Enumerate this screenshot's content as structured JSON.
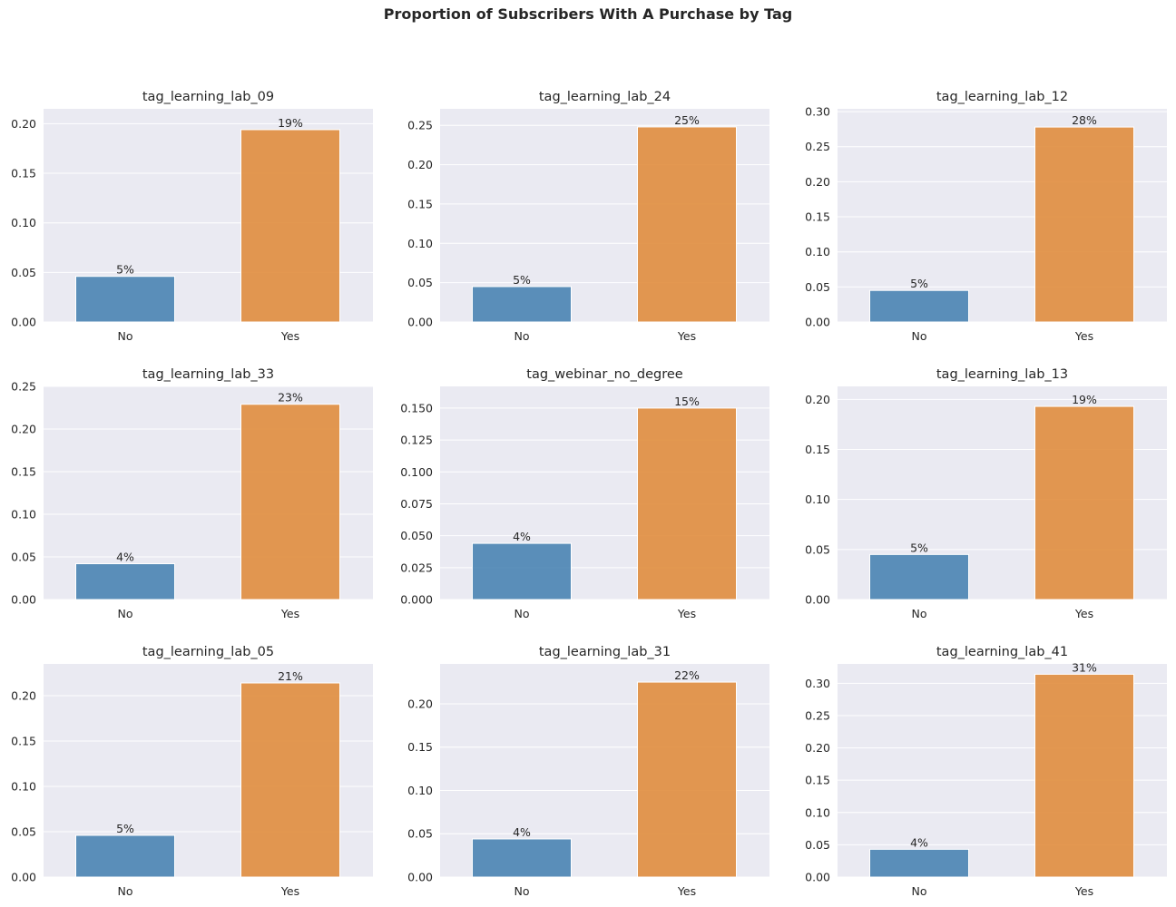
{
  "figure": {
    "suptitle": "Proportion of Subscribers With A Purchase by Tag"
  },
  "colors": {
    "no": "#4a84b2",
    "yes": "#e08d3e",
    "panel_bg": "#eaeaf2",
    "grid": "#ffffff"
  },
  "chart_data": [
    {
      "type": "bar",
      "title": "tag_learning_lab_09",
      "categories": [
        "No",
        "Yes"
      ],
      "values": [
        0.046,
        0.194
      ],
      "labels": [
        "5%",
        "19%"
      ],
      "ylim": [
        0,
        0.215
      ],
      "yticks": [
        "0.00",
        "0.05",
        "0.10",
        "0.15",
        "0.20"
      ],
      "ytick_values": [
        0,
        0.05,
        0.1,
        0.15,
        0.2
      ],
      "grid": true
    },
    {
      "type": "bar",
      "title": "tag_learning_lab_24",
      "categories": [
        "No",
        "Yes"
      ],
      "values": [
        0.045,
        0.248
      ],
      "labels": [
        "5%",
        "25%"
      ],
      "ylim": [
        0,
        0.271
      ],
      "yticks": [
        "0.00",
        "0.05",
        "0.10",
        "0.15",
        "0.20",
        "0.25"
      ],
      "ytick_values": [
        0,
        0.05,
        0.1,
        0.15,
        0.2,
        0.25
      ],
      "grid": true
    },
    {
      "type": "bar",
      "title": "tag_learning_lab_12",
      "categories": [
        "No",
        "Yes"
      ],
      "values": [
        0.045,
        0.278
      ],
      "labels": [
        "5%",
        "28%"
      ],
      "ylim": [
        0,
        0.304
      ],
      "yticks": [
        "0.00",
        "0.05",
        "0.10",
        "0.15",
        "0.20",
        "0.25",
        "0.30"
      ],
      "ytick_values": [
        0,
        0.05,
        0.1,
        0.15,
        0.2,
        0.25,
        0.3
      ],
      "grid": true
    },
    {
      "type": "bar",
      "title": "tag_learning_lab_33",
      "categories": [
        "No",
        "Yes"
      ],
      "values": [
        0.042,
        0.229
      ],
      "labels": [
        "4%",
        "23%"
      ],
      "ylim": [
        0,
        0.25
      ],
      "yticks": [
        "0.00",
        "0.05",
        "0.10",
        "0.15",
        "0.20",
        "0.25"
      ],
      "ytick_values": [
        0,
        0.05,
        0.1,
        0.15,
        0.2,
        0.25
      ],
      "grid": true
    },
    {
      "type": "bar",
      "title": "tag_webinar_no_degree",
      "categories": [
        "No",
        "Yes"
      ],
      "values": [
        0.044,
        0.15
      ],
      "labels": [
        "4%",
        "15%"
      ],
      "ylim": [
        0,
        0.167
      ],
      "yticks": [
        "0.000",
        "0.025",
        "0.050",
        "0.075",
        "0.100",
        "0.125",
        "0.150"
      ],
      "ytick_values": [
        0,
        0.025,
        0.05,
        0.075,
        0.1,
        0.125,
        0.15
      ],
      "grid": true
    },
    {
      "type": "bar",
      "title": "tag_learning_lab_13",
      "categories": [
        "No",
        "Yes"
      ],
      "values": [
        0.045,
        0.193
      ],
      "labels": [
        "5%",
        "19%"
      ],
      "ylim": [
        0,
        0.213
      ],
      "yticks": [
        "0.00",
        "0.05",
        "0.10",
        "0.15",
        "0.20"
      ],
      "ytick_values": [
        0,
        0.05,
        0.1,
        0.15,
        0.2
      ],
      "grid": true
    },
    {
      "type": "bar",
      "title": "tag_learning_lab_05",
      "categories": [
        "No",
        "Yes"
      ],
      "values": [
        0.046,
        0.214
      ],
      "labels": [
        "5%",
        "21%"
      ],
      "ylim": [
        0,
        0.235
      ],
      "yticks": [
        "0.00",
        "0.05",
        "0.10",
        "0.15",
        "0.20"
      ],
      "ytick_values": [
        0,
        0.05,
        0.1,
        0.15,
        0.2
      ],
      "grid": true
    },
    {
      "type": "bar",
      "title": "tag_learning_lab_31",
      "categories": [
        "No",
        "Yes"
      ],
      "values": [
        0.044,
        0.225
      ],
      "labels": [
        "4%",
        "22%"
      ],
      "ylim": [
        0,
        0.246
      ],
      "yticks": [
        "0.00",
        "0.05",
        "0.10",
        "0.15",
        "0.20"
      ],
      "ytick_values": [
        0,
        0.05,
        0.1,
        0.15,
        0.2
      ],
      "grid": true
    },
    {
      "type": "bar",
      "title": "tag_learning_lab_41",
      "categories": [
        "No",
        "Yes"
      ],
      "values": [
        0.043,
        0.314
      ],
      "labels": [
        "4%",
        "31%"
      ],
      "ylim": [
        0,
        0.33
      ],
      "yticks": [
        "0.00",
        "0.05",
        "0.10",
        "0.15",
        "0.20",
        "0.25",
        "0.30"
      ],
      "ytick_values": [
        0,
        0.05,
        0.1,
        0.15,
        0.2,
        0.25,
        0.3
      ],
      "grid": true
    }
  ]
}
